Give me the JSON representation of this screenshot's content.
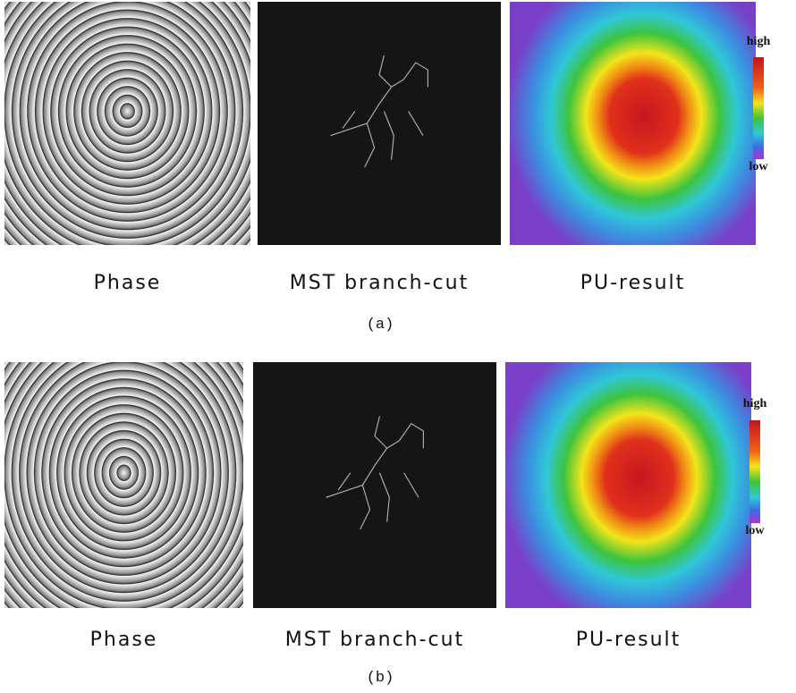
{
  "panels": [
    {
      "label": "(a)",
      "captions": [
        "Phase",
        "MST branch-cut",
        "PU-result"
      ],
      "colorbar": {
        "high": "high",
        "low": "low"
      }
    },
    {
      "label": "(b)",
      "captions": [
        "Phase",
        "MST branch-cut",
        "PU-result"
      ],
      "colorbar": {
        "high": "high",
        "low": "low"
      }
    }
  ]
}
